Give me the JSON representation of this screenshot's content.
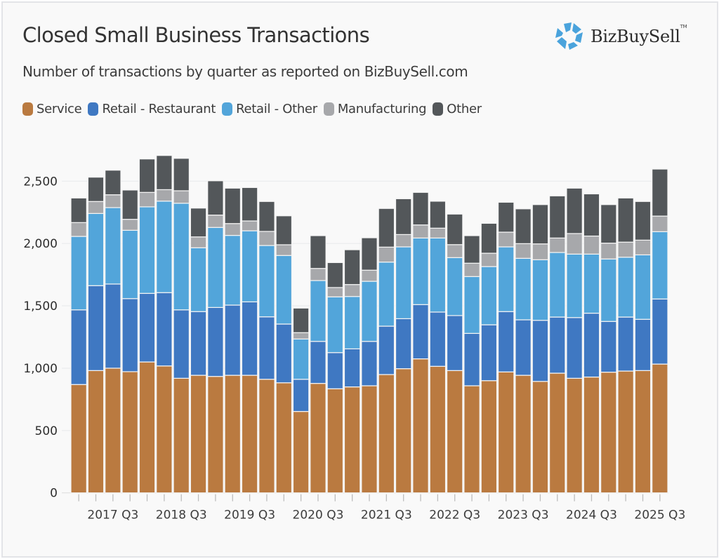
{
  "header": {
    "title": "Closed Small Business Transactions",
    "subtitle": "Number of transactions by quarter as reported on BizBuySell.com",
    "logo_text": "BizBuySell",
    "logo_tm": "TM",
    "logo_icon": "bizbuysell-pentagon-logo-icon",
    "logo_color": "#4aa3dc"
  },
  "chart_data": {
    "type": "bar",
    "stacked": true,
    "title": "Closed Small Business Transactions",
    "subtitle": "Number of transactions by quarter as reported on BizBuySell.com",
    "xlabel": "",
    "ylabel": "",
    "ylim": [
      0,
      2750
    ],
    "yticks": [
      0,
      500,
      1000,
      1500,
      2000,
      2500
    ],
    "ytick_labels": [
      "0",
      "500",
      "1,000",
      "1,500",
      "2,000",
      "2,500"
    ],
    "grid": true,
    "legend_position": "top-left",
    "categories": [
      "2017 Q1",
      "2017 Q2",
      "2017 Q3",
      "2017 Q4",
      "2018 Q1",
      "2018 Q2",
      "2018 Q3",
      "2018 Q4",
      "2019 Q1",
      "2019 Q2",
      "2019 Q3",
      "2019 Q4",
      "2020 Q1",
      "2020 Q2",
      "2020 Q3",
      "2020 Q4",
      "2021 Q1",
      "2021 Q2",
      "2021 Q3",
      "2021 Q4",
      "2022 Q1",
      "2022 Q2",
      "2022 Q3",
      "2022 Q4",
      "2023 Q1",
      "2023 Q2",
      "2023 Q3",
      "2023 Q4",
      "2024 Q1",
      "2024 Q2",
      "2024 Q3",
      "2024 Q4",
      "2025 Q1",
      "2025 Q2",
      "2025 Q3"
    ],
    "xtick_labels": [
      "2017 Q3",
      "2018 Q3",
      "2019 Q3",
      "2020 Q3",
      "2021 Q3",
      "2022 Q3",
      "2023 Q3",
      "2024 Q3",
      "2025 Q3"
    ],
    "series": [
      {
        "name": "Service",
        "color": "#ba7a40",
        "values": [
          869,
          981,
          1000,
          972,
          1050,
          1018,
          919,
          943,
          934,
          943,
          943,
          911,
          883,
          653,
          878,
          835,
          850,
          859,
          949,
          996,
          1075,
          1015,
          981,
          859,
          900,
          970,
          943,
          894,
          960,
          919,
          929,
          968,
          977,
          981,
          1033
        ]
      },
      {
        "name": "Retail - Restaurant",
        "color": "#3f78c2",
        "values": [
          599,
          681,
          675,
          586,
          550,
          588,
          549,
          511,
          553,
          563,
          589,
          501,
          471,
          258,
          337,
          290,
          305,
          356,
          388,
          401,
          435,
          435,
          441,
          420,
          448,
          484,
          445,
          490,
          450,
          487,
          512,
          407,
          433,
          411,
          522
        ]
      },
      {
        "name": "Retail - Other",
        "color": "#52a5da",
        "values": [
          589,
          579,
          613,
          548,
          694,
          734,
          855,
          512,
          642,
          559,
          570,
          572,
          550,
          323,
          488,
          447,
          420,
          482,
          514,
          576,
          534,
          594,
          465,
          456,
          467,
          519,
          493,
          486,
          518,
          509,
          474,
          501,
          480,
          517,
          540
        ]
      },
      {
        "name": "Manufacturing",
        "color": "#a7a8ab",
        "values": [
          111,
          96,
          103,
          88,
          116,
          92,
          100,
          87,
          99,
          95,
          79,
          113,
          86,
          51,
          97,
          75,
          96,
          89,
          120,
          99,
          105,
          79,
          104,
          107,
          107,
          118,
          118,
          127,
          116,
          165,
          145,
          127,
          121,
          118,
          125
        ]
      },
      {
        "name": "Other",
        "color": "#53575a",
        "values": [
          197,
          195,
          197,
          235,
          268,
          274,
          260,
          231,
          275,
          284,
          268,
          240,
          232,
          197,
          263,
          200,
          279,
          260,
          310,
          287,
          261,
          216,
          245,
          221,
          240,
          240,
          279,
          315,
          338,
          364,
          338,
          309,
          354,
          310,
          377
        ]
      }
    ]
  }
}
